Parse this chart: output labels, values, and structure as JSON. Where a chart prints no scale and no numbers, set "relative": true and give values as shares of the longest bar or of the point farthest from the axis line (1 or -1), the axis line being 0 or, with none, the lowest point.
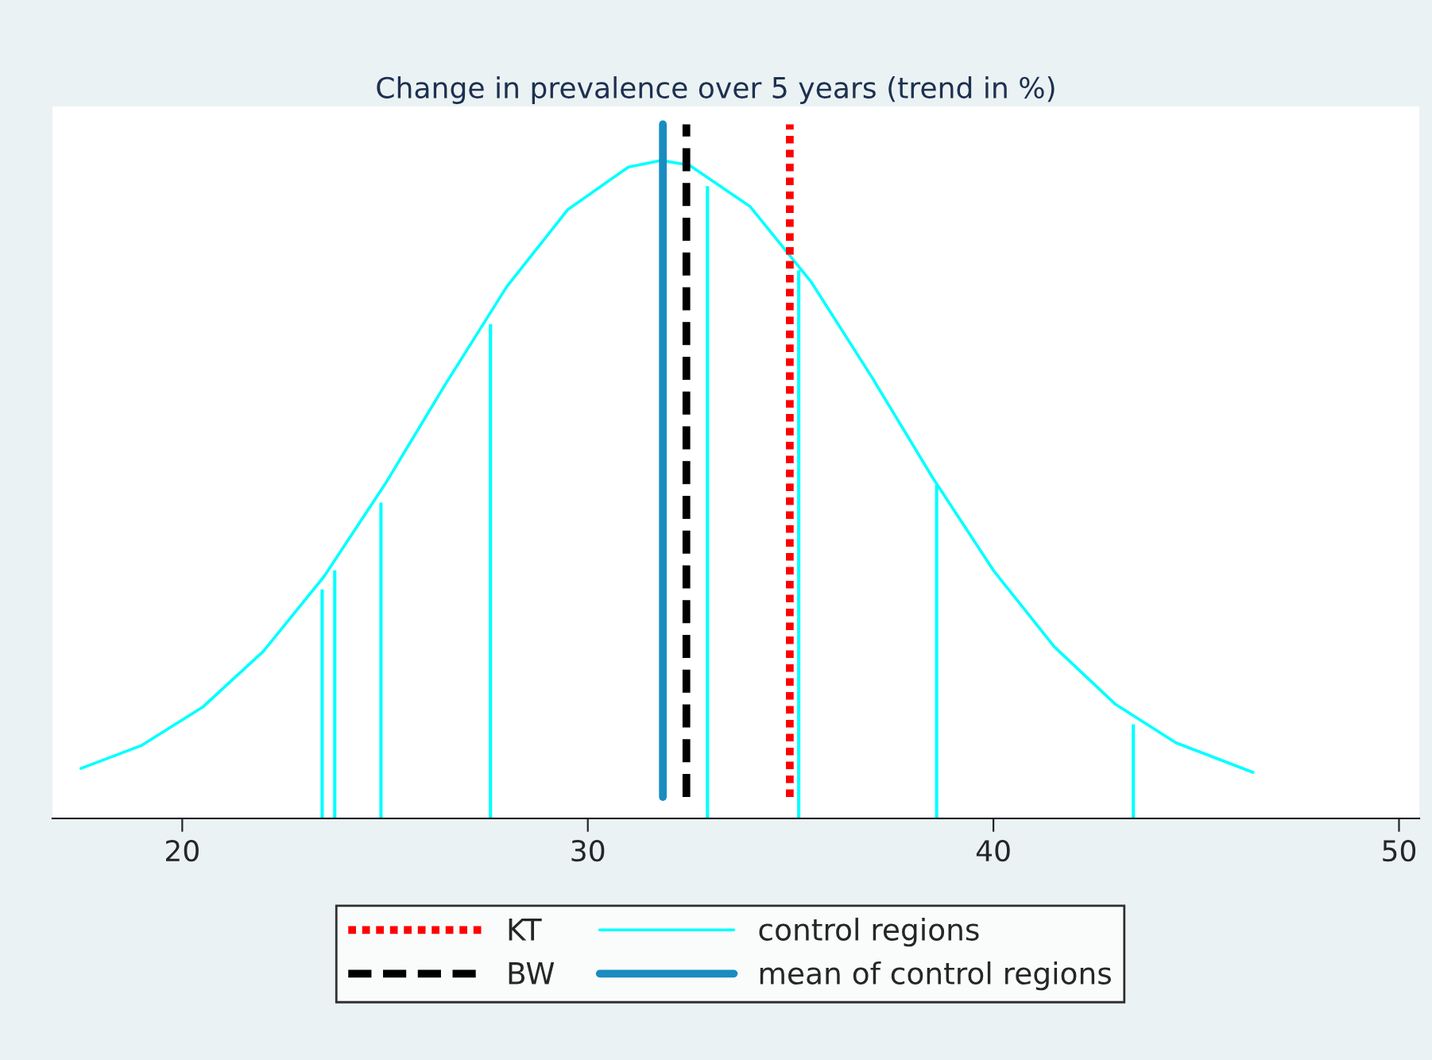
{
  "chart_data": {
    "type": "line",
    "title": "Change in prevalence over 5 years (trend in %)",
    "relative": true,
    "series": [
      {
        "name": "control regions",
        "color": "#00ffff",
        "x": [
          17.5,
          19,
          20.5,
          22,
          23.5,
          25,
          26.5,
          28,
          29.5,
          31,
          31.8,
          32.5,
          34,
          35.5,
          37,
          38.5,
          40,
          41.5,
          43,
          44.5,
          46.4
        ],
        "values": [
          0.076,
          0.111,
          0.169,
          0.254,
          0.368,
          0.508,
          0.661,
          0.808,
          0.925,
          0.99,
          1.0,
          0.993,
          0.93,
          0.816,
          0.671,
          0.518,
          0.377,
          0.261,
          0.174,
          0.115,
          0.07
        ]
      },
      {
        "type": "bar",
        "color": "#00ffff",
        "x": [
          23.45,
          23.76,
          24.9,
          27.6,
          32.95,
          35.2,
          38.6,
          43.45
        ],
        "values": [
          0.348,
          0.377,
          0.48,
          0.751,
          0.961,
          0.833,
          0.507,
          0.143
        ]
      }
    ],
    "ref_lines": [
      {
        "axis": "x",
        "value": 34.98,
        "label": "KT",
        "color": "#ff0000",
        "line_style": "dotted"
      },
      {
        "axis": "x",
        "value": 32.43,
        "label": "BW",
        "color": "#000000",
        "line_style": "dashed"
      },
      {
        "axis": "x",
        "value": 31.85,
        "label": "mean of control regions",
        "color": "#1a8cc0",
        "line_style": "solid"
      }
    ],
    "xlim": [
      16.8,
      50.5
    ],
    "xticks": [
      20,
      30,
      40,
      50
    ],
    "tick_labels": "x",
    "grid": false,
    "legend": "bottom"
  }
}
